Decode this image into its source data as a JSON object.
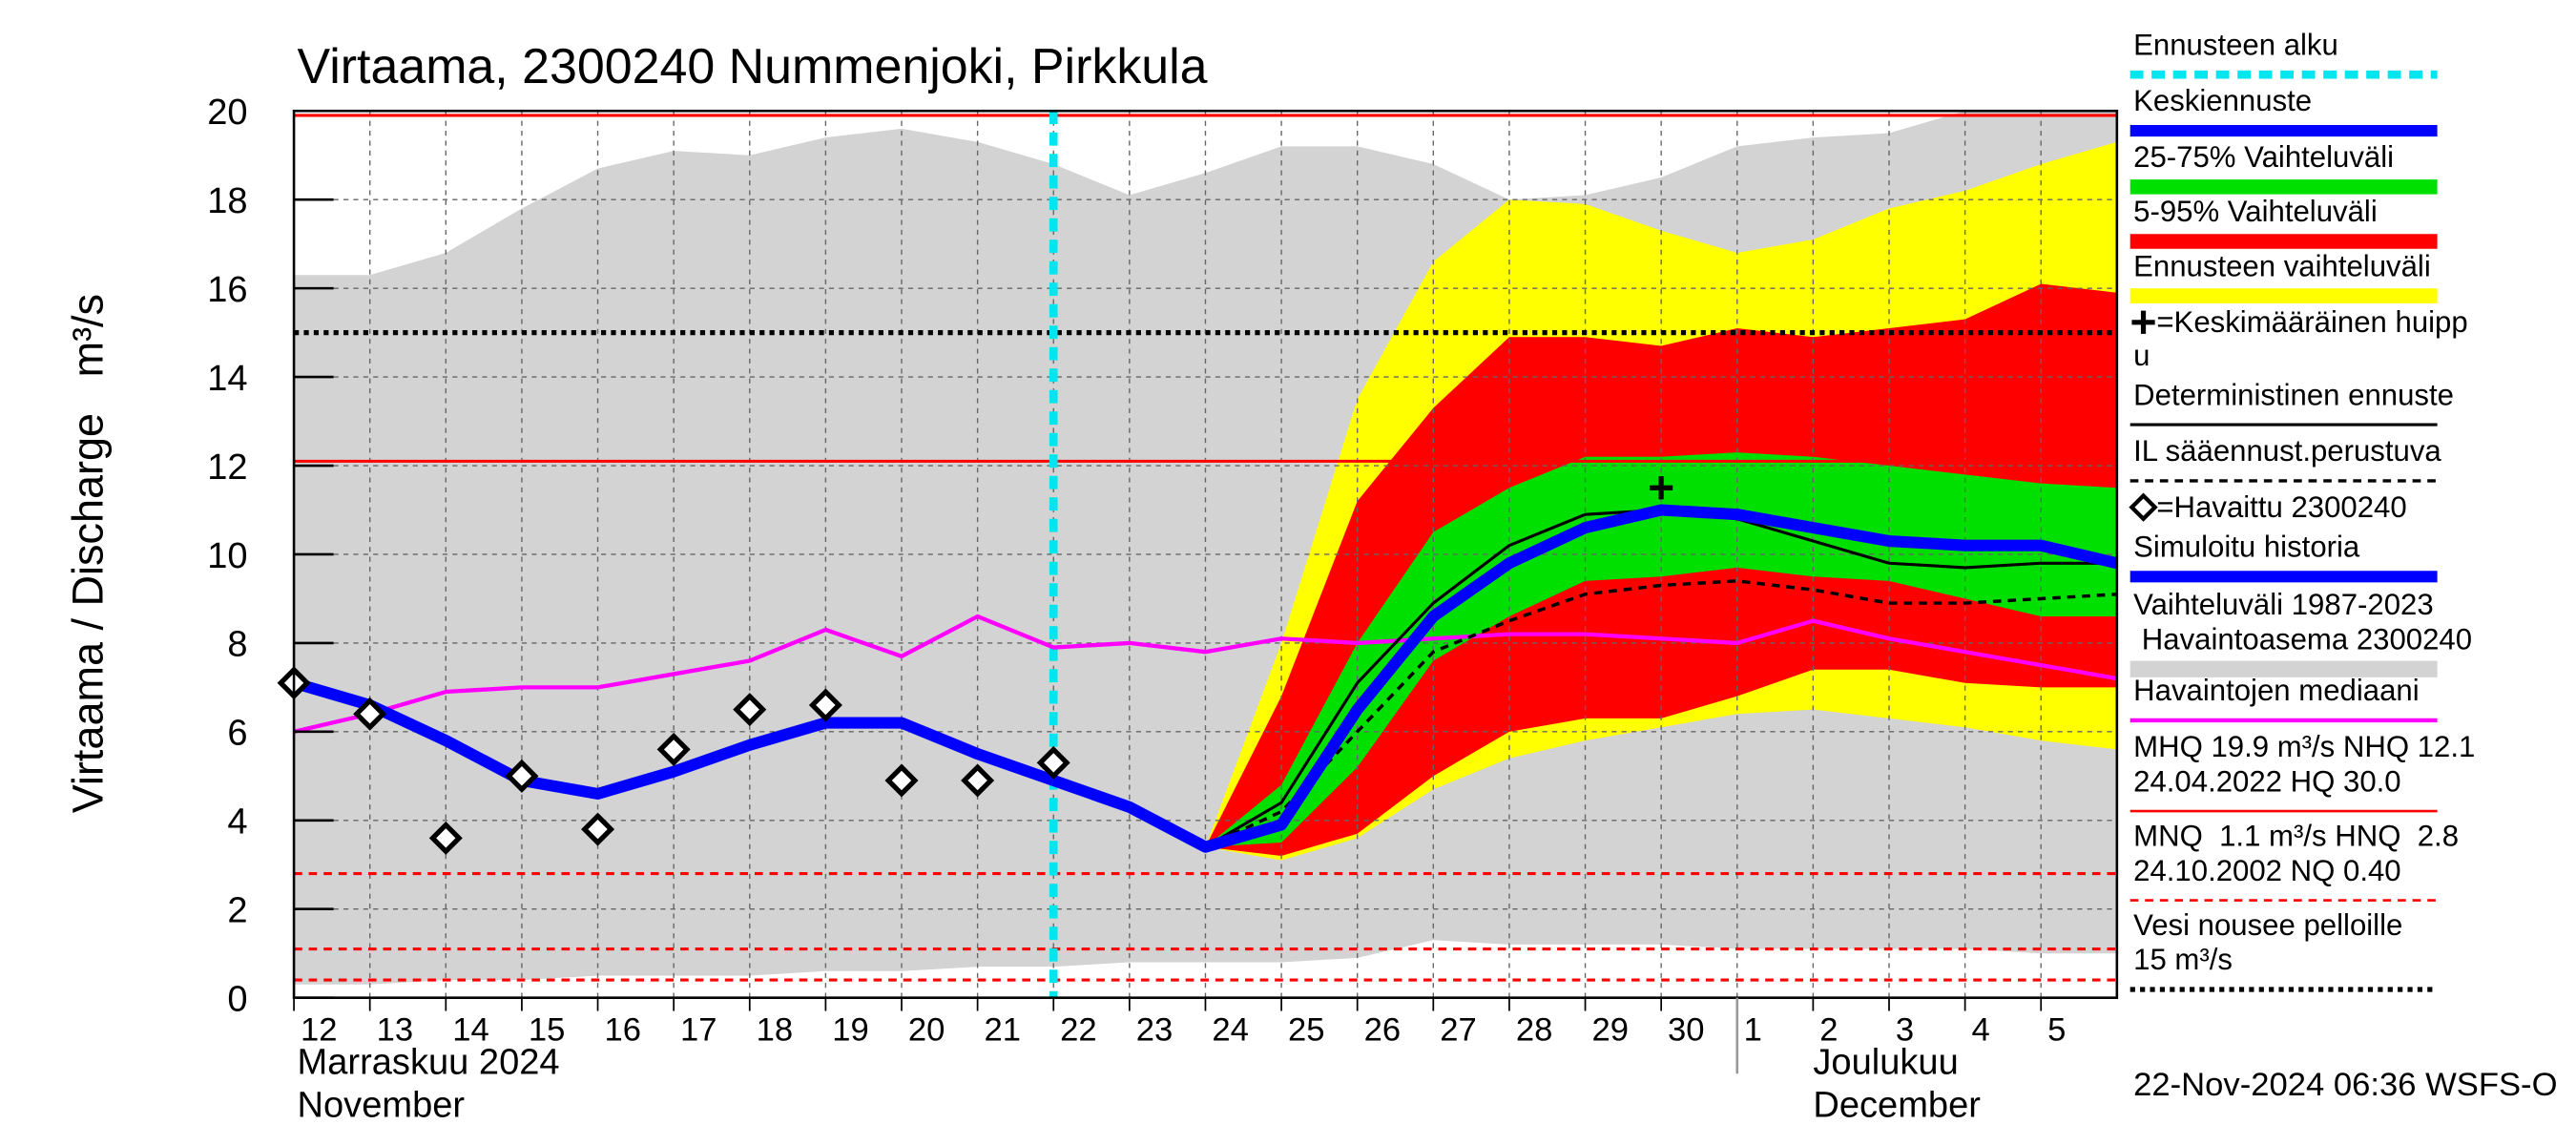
{
  "chart_data": {
    "type": "line",
    "title": "Virtaama, 2300240 Nummenjoki, Pirkkula",
    "y_label": "Virtaama / Discharge   m³/s",
    "categories": [
      "12",
      "13",
      "14",
      "15",
      "16",
      "17",
      "18",
      "19",
      "20",
      "21",
      "22",
      "23",
      "24",
      "25",
      "26",
      "27",
      "28",
      "29",
      "30",
      "1",
      "2",
      "3",
      "4",
      "5",
      null
    ],
    "month_labels": [
      {
        "at": "12",
        "lines": [
          "Marraskuu 2024",
          "November"
        ]
      },
      {
        "at": "1",
        "lines": [
          "Joulukuu",
          "December"
        ]
      }
    ],
    "ylim": [
      0,
      20
    ],
    "yticks": [
      0,
      2,
      4,
      6,
      8,
      10,
      12,
      14,
      16,
      18,
      20
    ],
    "grid": true,
    "forecast_start": {
      "name": "Ennusteen alku",
      "at": "22",
      "color": "#00e5ee"
    },
    "bands": [
      {
        "name": "Vaihteluväli 1987-2023",
        "name_2": " Havaintoasema 2300240",
        "color": "#d3d3d3",
        "low": [
          0.3,
          0.3,
          0.4,
          0.4,
          0.5,
          0.5,
          0.5,
          0.6,
          0.6,
          0.7,
          0.7,
          0.8,
          0.8,
          0.8,
          0.9,
          1.3,
          1.2,
          1.2,
          1.2,
          1.1,
          1.1,
          1.1,
          1.1,
          1.0,
          1.0
        ],
        "high": [
          16.3,
          16.3,
          16.8,
          17.8,
          18.7,
          19.1,
          19.0,
          19.4,
          19.6,
          19.3,
          18.8,
          18.1,
          18.6,
          19.2,
          19.2,
          18.8,
          18.0,
          18.1,
          18.5,
          19.2,
          19.4,
          19.5,
          20.0,
          20.0,
          20.0
        ]
      },
      {
        "name": "Ennusteen vaihteluväli",
        "color": "#ffff00",
        "low": [
          null,
          null,
          null,
          null,
          null,
          null,
          null,
          null,
          null,
          null,
          null,
          null,
          3.4,
          3.1,
          3.6,
          4.7,
          5.4,
          5.8,
          6.1,
          6.4,
          6.5,
          6.3,
          6.1,
          5.8,
          5.6
        ],
        "high": [
          null,
          null,
          null,
          null,
          null,
          null,
          null,
          null,
          null,
          null,
          null,
          null,
          3.4,
          8.0,
          13.5,
          16.6,
          18.0,
          17.9,
          17.3,
          16.8,
          17.1,
          17.8,
          18.2,
          18.8,
          19.3
        ]
      },
      {
        "name": "5-95% Vaihteluväli",
        "color": "#ff0000",
        "low": [
          null,
          null,
          null,
          null,
          null,
          null,
          null,
          null,
          null,
          null,
          null,
          null,
          3.4,
          3.2,
          3.7,
          5.0,
          6.0,
          6.3,
          6.3,
          6.8,
          7.4,
          7.4,
          7.1,
          7.0,
          7.0
        ],
        "high": [
          null,
          null,
          null,
          null,
          null,
          null,
          null,
          null,
          null,
          null,
          null,
          null,
          3.4,
          6.8,
          11.2,
          13.3,
          14.9,
          14.9,
          14.7,
          15.1,
          14.9,
          15.1,
          15.3,
          16.1,
          15.9
        ]
      },
      {
        "name": "25-75% Vaihteluväli",
        "color": "#00e000",
        "low": [
          null,
          null,
          null,
          null,
          null,
          null,
          null,
          null,
          null,
          null,
          null,
          null,
          3.4,
          3.5,
          5.2,
          7.6,
          8.6,
          9.4,
          9.5,
          9.7,
          9.5,
          9.4,
          9.0,
          8.6,
          8.6
        ],
        "high": [
          null,
          null,
          null,
          null,
          null,
          null,
          null,
          null,
          null,
          null,
          null,
          null,
          3.4,
          4.8,
          8.0,
          10.5,
          11.5,
          12.2,
          12.2,
          12.3,
          12.2,
          12.0,
          11.8,
          11.6,
          11.5
        ]
      }
    ],
    "reference_lines": [
      {
        "name": "MHQ 19.9 m³/s NHQ 12.1",
        "name_2": "24.04.2022 HQ 30.0",
        "color": "#ff0000",
        "dash": "none",
        "values": [
          19.9,
          12.1
        ]
      },
      {
        "name": "MNQ  1.1 m³/s HNQ  2.8",
        "name_2": "24.10.2002 NQ 0.40",
        "color": "#ff0000",
        "dash": "5 4",
        "values": [
          1.1,
          2.8,
          0.4
        ]
      },
      {
        "name": "Vesi nousee pelloille",
        "name_2": "15 m³/s",
        "color": "#000000",
        "dash": "3 3",
        "values": [
          15
        ]
      }
    ],
    "series": [
      {
        "name": "Havaintojen mediaani",
        "color": "#ff00ff",
        "width": 2.5,
        "dash": "none",
        "values": [
          6.0,
          6.4,
          6.9,
          7.0,
          7.0,
          7.3,
          7.6,
          8.3,
          7.7,
          8.6,
          7.9,
          8.0,
          7.8,
          8.1,
          8.0,
          8.1,
          8.2,
          8.2,
          8.1,
          8.0,
          8.5,
          8.1,
          7.8,
          7.5,
          7.2
        ]
      },
      {
        "name": "Deterministinen ennuste",
        "color": "#000000",
        "width": 1.8,
        "dash": "none",
        "values": [
          null,
          null,
          null,
          null,
          null,
          null,
          null,
          null,
          null,
          null,
          null,
          null,
          3.4,
          4.4,
          7.1,
          8.9,
          10.2,
          10.9,
          11.0,
          10.8,
          10.3,
          9.8,
          9.7,
          9.8,
          9.8
        ]
      },
      {
        "name": "IL sääennust.perustuva",
        "color": "#000000",
        "width": 2,
        "dash": "5 4",
        "values": [
          null,
          null,
          null,
          null,
          null,
          null,
          null,
          null,
          null,
          null,
          null,
          null,
          3.4,
          4.2,
          6.0,
          7.8,
          8.5,
          9.1,
          9.3,
          9.4,
          9.2,
          8.9,
          8.9,
          9.0,
          9.1
        ]
      },
      {
        "name": "Simuloitu historia",
        "color": "#0000ff",
        "width": 7,
        "dash": "none",
        "values": [
          7.1,
          6.6,
          5.8,
          4.9,
          4.6,
          5.1,
          5.7,
          6.2,
          6.2,
          5.5,
          4.9,
          null,
          null,
          null,
          null,
          null,
          null,
          null,
          null,
          null,
          null,
          null,
          null,
          null,
          null
        ]
      },
      {
        "name": "Keskiennuste",
        "color": "#0000ff",
        "width": 7,
        "dash": "none",
        "values": [
          null,
          null,
          null,
          null,
          null,
          null,
          null,
          null,
          null,
          null,
          4.9,
          4.3,
          3.4,
          3.9,
          6.5,
          8.6,
          9.8,
          10.6,
          11.0,
          10.9,
          10.6,
          10.3,
          10.2,
          10.2,
          9.8
        ]
      },
      {
        "name": "=Havaittu 2300240",
        "color": "#000000",
        "marker": "diamond",
        "values": [
          7.1,
          6.4,
          3.6,
          5.0,
          3.8,
          5.6,
          6.5,
          6.6,
          4.9,
          4.9,
          5.3,
          null,
          null,
          null,
          null,
          null,
          null,
          null,
          null,
          null,
          null,
          null,
          null,
          null,
          null
        ]
      }
    ],
    "peak": {
      "name": "=Keskimääräinen huipp",
      "name_2": "u",
      "at": "30",
      "value": 11.5,
      "color": "#000000"
    },
    "timestamp": "22-Nov-2024 06:36 WSFS-O"
  }
}
